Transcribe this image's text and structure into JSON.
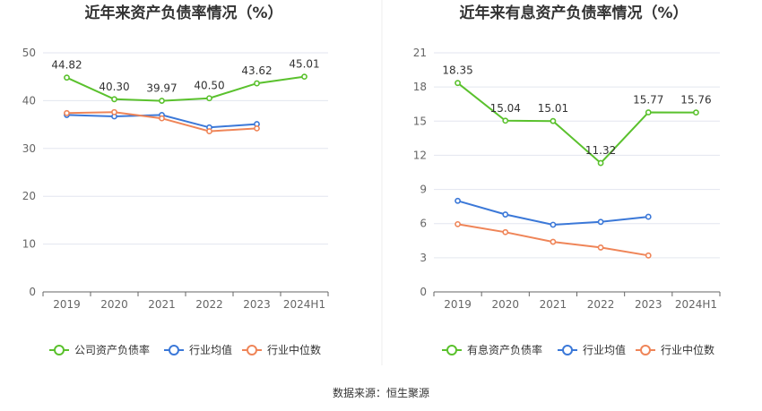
{
  "source": "数据来源：恒生聚源",
  "colors": {
    "green": "#5ac12d",
    "blue": "#3b78d8",
    "orange": "#ef8558",
    "grid": "#e3e6ef",
    "axis": "#666666"
  },
  "chart_data": [
    {
      "type": "line",
      "title": "近年来资产负债率情况（%）",
      "categories": [
        "2019",
        "2020",
        "2021",
        "2022",
        "2023",
        "2024H1"
      ],
      "ylim": [
        0,
        50
      ],
      "yticks": [
        0,
        10,
        20,
        30,
        40,
        50
      ],
      "grid": true,
      "legend_position": "bottom",
      "series": [
        {
          "name": "公司资产负债率",
          "color": "#5ac12d",
          "values": [
            44.82,
            40.3,
            39.97,
            40.5,
            43.62,
            45.01
          ],
          "labels": [
            "44.82",
            "40.30",
            "39.97",
            "40.50",
            "43.62",
            "45.01"
          ]
        },
        {
          "name": "行业均值",
          "color": "#3b78d8",
          "values": [
            37.0,
            36.7,
            37.0,
            34.4,
            35.1,
            null
          ]
        },
        {
          "name": "行业中位数",
          "color": "#ef8558",
          "values": [
            37.4,
            37.6,
            36.3,
            33.6,
            34.2,
            null
          ]
        }
      ]
    },
    {
      "type": "line",
      "title": "近年来有息资产负债率情况（%）",
      "categories": [
        "2019",
        "2020",
        "2021",
        "2022",
        "2023",
        "2024H1"
      ],
      "ylim": [
        0,
        21
      ],
      "yticks": [
        0,
        3,
        6,
        9,
        12,
        15,
        18,
        21
      ],
      "grid": true,
      "legend_position": "bottom",
      "series": [
        {
          "name": "有息资产负债率",
          "color": "#5ac12d",
          "values": [
            18.35,
            15.04,
            15.01,
            11.32,
            15.77,
            15.76
          ],
          "labels": [
            "18.35",
            "15.04",
            "15.01",
            "11.32",
            "15.77",
            "15.76"
          ]
        },
        {
          "name": "行业均值",
          "color": "#3b78d8",
          "values": [
            8.0,
            6.8,
            5.9,
            6.15,
            6.6,
            null
          ]
        },
        {
          "name": "行业中位数",
          "color": "#ef8558",
          "values": [
            5.95,
            5.25,
            4.4,
            3.9,
            3.2,
            null
          ]
        }
      ]
    }
  ]
}
